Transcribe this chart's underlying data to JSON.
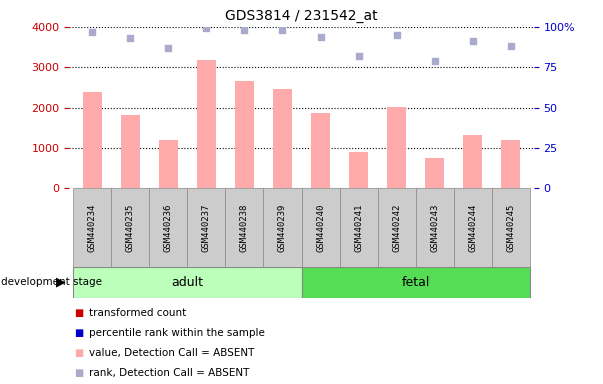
{
  "title": "GDS3814 / 231542_at",
  "samples": [
    "GSM440234",
    "GSM440235",
    "GSM440236",
    "GSM440237",
    "GSM440238",
    "GSM440239",
    "GSM440240",
    "GSM440241",
    "GSM440242",
    "GSM440243",
    "GSM440244",
    "GSM440245"
  ],
  "bar_values": [
    2380,
    1820,
    1200,
    3170,
    2650,
    2470,
    1870,
    900,
    2010,
    760,
    1330,
    1190
  ],
  "rank_values": [
    97,
    93,
    87,
    99,
    98,
    98,
    94,
    82,
    95,
    79,
    91,
    88
  ],
  "bar_color": "#ffaaaa",
  "rank_color": "#aaaacc",
  "adult_samples": 6,
  "fetal_samples": 6,
  "adult_label": "adult",
  "fetal_label": "fetal",
  "adult_color": "#bbffbb",
  "fetal_color": "#55dd55",
  "stage_label": "development stage",
  "ylim_left": [
    0,
    4000
  ],
  "ylim_right": [
    0,
    100
  ],
  "yticks_left": [
    0,
    1000,
    2000,
    3000,
    4000
  ],
  "yticks_right": [
    0,
    25,
    50,
    75,
    100
  ],
  "yticklabels_right": [
    "0",
    "25",
    "50",
    "75",
    "100%"
  ],
  "left_tick_color": "#cc0000",
  "right_tick_color": "#0000cc",
  "legend_items": [
    {
      "label": "transformed count",
      "color": "#cc0000"
    },
    {
      "label": "percentile rank within the sample",
      "color": "#0000cc"
    },
    {
      "label": "value, Detection Call = ABSENT",
      "color": "#ffaaaa"
    },
    {
      "label": "rank, Detection Call = ABSENT",
      "color": "#aaaacc"
    }
  ],
  "grid_color": "#000000",
  "background_color": "#ffffff",
  "bar_width": 0.5
}
